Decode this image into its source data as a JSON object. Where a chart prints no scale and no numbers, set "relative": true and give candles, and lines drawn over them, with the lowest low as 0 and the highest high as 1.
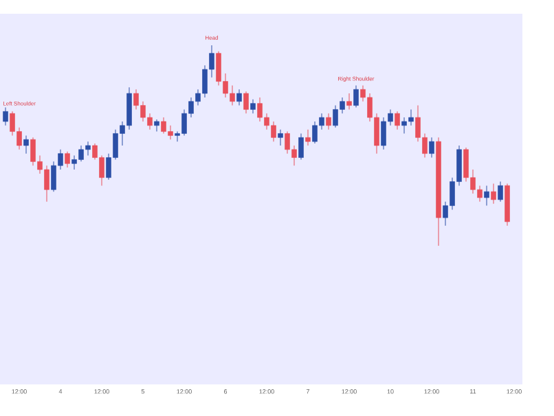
{
  "chart_data": {
    "type": "candlestick",
    "relative": true,
    "categories": [
      null,
      null,
      "12:00",
      null,
      null,
      null,
      null,
      null,
      "4",
      null,
      null,
      null,
      null,
      null,
      "12:00",
      null,
      null,
      null,
      null,
      null,
      "5",
      null,
      null,
      null,
      null,
      null,
      "12:00",
      null,
      null,
      null,
      null,
      null,
      "6",
      null,
      null,
      null,
      null,
      null,
      "12:00",
      null,
      null,
      null,
      null,
      null,
      "7",
      null,
      null,
      null,
      null,
      null,
      "12:00",
      null,
      null,
      null,
      null,
      null,
      "10",
      null,
      null,
      null,
      null,
      null,
      "12:00",
      null,
      null,
      null,
      null,
      null,
      "11",
      null,
      null,
      null,
      null,
      null,
      "12:00",
      null,
      null,
      null,
      null
    ],
    "ohlc": [
      [
        0.62,
        0.69,
        0.6,
        0.67
      ],
      [
        0.66,
        0.67,
        0.55,
        0.57
      ],
      [
        0.57,
        0.59,
        0.48,
        0.5
      ],
      [
        0.5,
        0.55,
        0.46,
        0.53
      ],
      [
        0.53,
        0.54,
        0.4,
        0.42
      ],
      [
        0.42,
        0.45,
        0.36,
        0.38
      ],
      [
        0.38,
        0.4,
        0.22,
        0.28
      ],
      [
        0.28,
        0.42,
        0.27,
        0.4
      ],
      [
        0.4,
        0.48,
        0.38,
        0.46
      ],
      [
        0.46,
        0.47,
        0.39,
        0.41
      ],
      [
        0.41,
        0.45,
        0.38,
        0.43
      ],
      [
        0.43,
        0.5,
        0.42,
        0.48
      ],
      [
        0.48,
        0.52,
        0.45,
        0.5
      ],
      [
        0.5,
        0.51,
        0.43,
        0.44
      ],
      [
        0.44,
        0.45,
        0.3,
        0.34
      ],
      [
        0.34,
        0.46,
        0.33,
        0.44
      ],
      [
        0.44,
        0.58,
        0.43,
        0.56
      ],
      [
        0.56,
        0.62,
        0.5,
        0.6
      ],
      [
        0.6,
        0.79,
        0.58,
        0.76
      ],
      [
        0.76,
        0.78,
        0.68,
        0.7
      ],
      [
        0.7,
        0.72,
        0.62,
        0.64
      ],
      [
        0.64,
        0.66,
        0.58,
        0.6
      ],
      [
        0.6,
        0.63,
        0.57,
        0.62
      ],
      [
        0.62,
        0.64,
        0.56,
        0.57
      ],
      [
        0.57,
        0.6,
        0.53,
        0.55
      ],
      [
        0.55,
        0.57,
        0.52,
        0.56
      ],
      [
        0.56,
        0.68,
        0.55,
        0.66
      ],
      [
        0.66,
        0.74,
        0.64,
        0.72
      ],
      [
        0.72,
        0.78,
        0.7,
        0.76
      ],
      [
        0.76,
        0.9,
        0.74,
        0.88
      ],
      [
        0.88,
        1.0,
        0.84,
        0.96
      ],
      [
        0.96,
        0.97,
        0.8,
        0.82
      ],
      [
        0.82,
        0.86,
        0.74,
        0.76
      ],
      [
        0.76,
        0.8,
        0.7,
        0.72
      ],
      [
        0.72,
        0.78,
        0.7,
        0.76
      ],
      [
        0.76,
        0.77,
        0.66,
        0.68
      ],
      [
        0.68,
        0.73,
        0.66,
        0.71
      ],
      [
        0.71,
        0.74,
        0.62,
        0.64
      ],
      [
        0.64,
        0.66,
        0.58,
        0.6
      ],
      [
        0.6,
        0.62,
        0.52,
        0.54
      ],
      [
        0.54,
        0.58,
        0.5,
        0.56
      ],
      [
        0.56,
        0.57,
        0.46,
        0.48
      ],
      [
        0.48,
        0.5,
        0.4,
        0.44
      ],
      [
        0.44,
        0.56,
        0.43,
        0.54
      ],
      [
        0.54,
        0.58,
        0.5,
        0.52
      ],
      [
        0.52,
        0.62,
        0.51,
        0.6
      ],
      [
        0.6,
        0.66,
        0.58,
        0.64
      ],
      [
        0.64,
        0.66,
        0.58,
        0.6
      ],
      [
        0.6,
        0.7,
        0.59,
        0.68
      ],
      [
        0.68,
        0.74,
        0.66,
        0.72
      ],
      [
        0.72,
        0.76,
        0.68,
        0.7
      ],
      [
        0.7,
        0.8,
        0.69,
        0.78
      ],
      [
        0.78,
        0.8,
        0.72,
        0.74
      ],
      [
        0.74,
        0.76,
        0.62,
        0.64
      ],
      [
        0.64,
        0.66,
        0.46,
        0.5
      ],
      [
        0.5,
        0.64,
        0.48,
        0.62
      ],
      [
        0.62,
        0.68,
        0.6,
        0.66
      ],
      [
        0.66,
        0.67,
        0.58,
        0.6
      ],
      [
        0.6,
        0.64,
        0.56,
        0.62
      ],
      [
        0.62,
        0.68,
        0.6,
        0.64
      ],
      [
        0.64,
        0.7,
        0.52,
        0.54
      ],
      [
        0.54,
        0.56,
        0.44,
        0.46
      ],
      [
        0.46,
        0.54,
        0.44,
        0.52
      ],
      [
        0.52,
        0.54,
        0.0,
        0.14
      ],
      [
        0.14,
        0.22,
        0.1,
        0.2
      ],
      [
        0.2,
        0.34,
        0.18,
        0.32
      ],
      [
        0.32,
        0.5,
        0.3,
        0.48
      ],
      [
        0.48,
        0.49,
        0.32,
        0.34
      ],
      [
        0.34,
        0.38,
        0.26,
        0.28
      ],
      [
        0.28,
        0.3,
        0.22,
        0.24
      ],
      [
        0.24,
        0.3,
        0.2,
        0.27
      ],
      [
        0.27,
        0.31,
        0.21,
        0.23
      ],
      [
        0.23,
        0.32,
        0.22,
        0.3
      ],
      [
        0.3,
        0.31,
        0.1,
        0.12
      ],
      null,
      null,
      null,
      null,
      null
    ],
    "colors": [
      "#2b4fa6",
      "#e8505b",
      "#e8505b",
      "#2b4fa6",
      "#e8505b",
      "#e8505b",
      "#e8505b",
      "#2b4fa6",
      "#2b4fa6",
      "#e8505b",
      "#2b4fa6",
      "#2b4fa6",
      "#2b4fa6",
      "#e8505b",
      "#e8505b",
      "#2b4fa6",
      "#2b4fa6",
      "#2b4fa6",
      "#2b4fa6",
      "#e8505b",
      "#e8505b",
      "#e8505b",
      "#2b4fa6",
      "#e8505b",
      "#e8505b",
      "#2b4fa6",
      "#2b4fa6",
      "#2b4fa6",
      "#2b4fa6",
      "#2b4fa6",
      "#2b4fa6",
      "#e8505b",
      "#e8505b",
      "#e8505b",
      "#2b4fa6",
      "#e8505b",
      "#2b4fa6",
      "#e8505b",
      "#e8505b",
      "#e8505b",
      "#2b4fa6",
      "#e8505b",
      "#e8505b",
      "#2b4fa6",
      "#e8505b",
      "#2b4fa6",
      "#2b4fa6",
      "#e8505b",
      "#2b4fa6",
      "#2b4fa6",
      "#e8505b",
      "#2b4fa6",
      "#e8505b",
      "#e8505b",
      "#e8505b",
      "#2b4fa6",
      "#2b4fa6",
      "#e8505b",
      "#2b4fa6",
      "#2b4fa6",
      "#e8505b",
      "#e8505b",
      "#2b4fa6",
      "#e8505b",
      "#2b4fa6",
      "#2b4fa6",
      "#2b4fa6",
      "#e8505b",
      "#e8505b",
      "#e8505b",
      "#2b4fa6",
      "#e8505b",
      "#2b4fa6",
      "#e8505b",
      null,
      null,
      null,
      null,
      null
    ],
    "annotations": [
      "Left Shoulder",
      "Head",
      "Right Shoulder"
    ]
  }
}
